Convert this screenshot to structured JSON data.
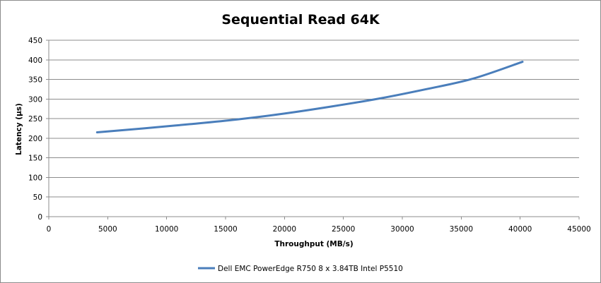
{
  "chart_data": {
    "type": "line",
    "title": "Sequential Read 64K",
    "xlabel": "Throughput (MB/s)",
    "ylabel": "Latency (µs)",
    "xlim": [
      0,
      45000
    ],
    "ylim": [
      0,
      450
    ],
    "x_ticks": [
      0,
      5000,
      10000,
      15000,
      20000,
      25000,
      30000,
      35000,
      40000,
      45000
    ],
    "y_ticks": [
      0,
      50,
      100,
      150,
      200,
      250,
      300,
      350,
      400,
      450
    ],
    "grid": "horizontal",
    "legend_position": "bottom",
    "series": [
      {
        "name": "Dell EMC PowerEdge R750 8 x 3.84TB Intel P5510",
        "color": "#4a7ebb",
        "x": [
          4100,
          8000,
          12000,
          16000,
          20000,
          24000,
          28000,
          32000,
          36000,
          40200
        ],
        "y": [
          215,
          225,
          236,
          248,
          263,
          281,
          301,
          325,
          352,
          395
        ]
      }
    ]
  }
}
